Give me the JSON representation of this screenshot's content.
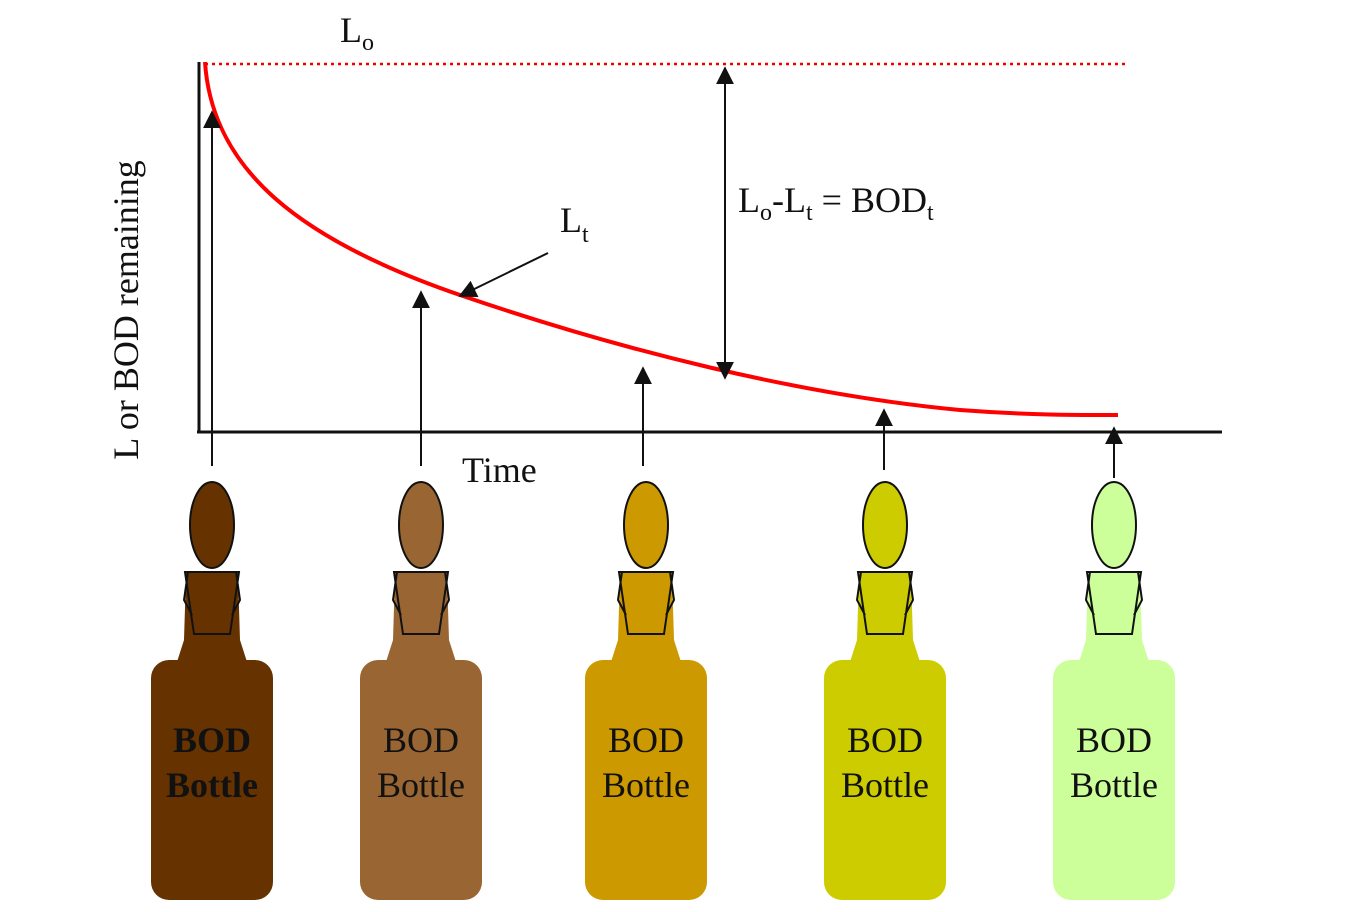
{
  "axes": {
    "y_label": "L or BOD remaining",
    "x_label": "Time"
  },
  "initial_label": {
    "main": "L",
    "sub": "o"
  },
  "curve_label": {
    "main": "L",
    "sub": "t"
  },
  "equation": {
    "parts": [
      "L",
      "o",
      "-L",
      "t",
      " = BOD",
      "t"
    ]
  },
  "bottles": [
    {
      "line1": "BOD",
      "line2": "Bottle",
      "color": "#663300",
      "bold": true
    },
    {
      "line1": "BOD",
      "line2": "Bottle",
      "color": "#996633",
      "bold": false
    },
    {
      "line1": "BOD",
      "line2": "Bottle",
      "color": "#cc9900",
      "bold": false
    },
    {
      "line1": "BOD",
      "line2": "Bottle",
      "color": "#cccc00",
      "bold": false
    },
    {
      "line1": "BOD",
      "line2": "Bottle",
      "color": "#ccff99",
      "bold": false
    }
  ]
}
